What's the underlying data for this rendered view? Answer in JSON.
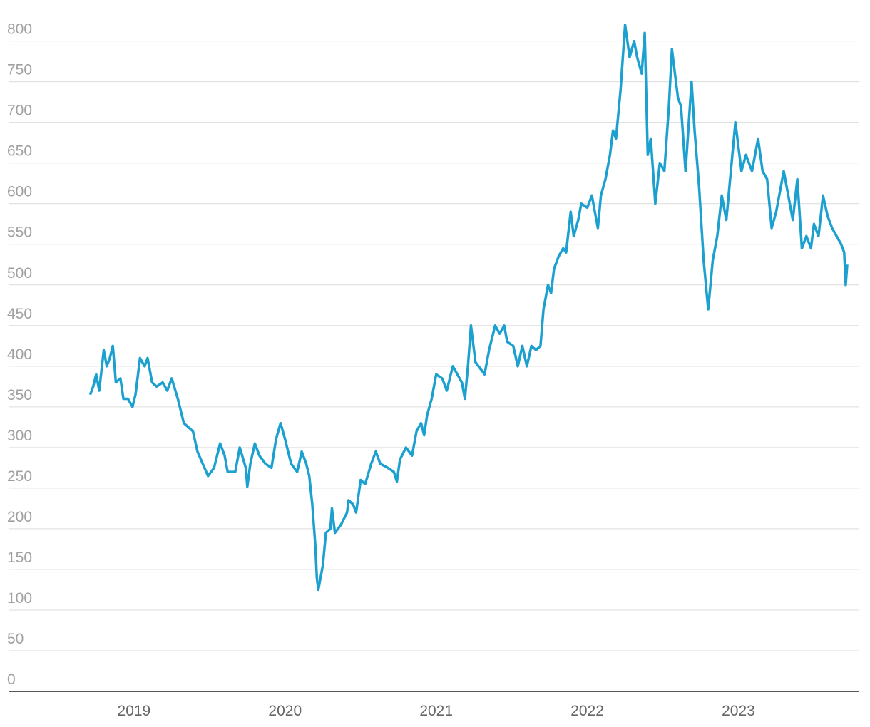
{
  "chart_data": {
    "type": "line",
    "color": "#1ca0cf",
    "grid": true,
    "xlim": [
      2018.17,
      2023.8
    ],
    "xticks": [
      2019,
      2020,
      2021,
      2022,
      2023
    ],
    "ylim": [
      0,
      833
    ],
    "yticks": [
      0,
      50,
      100,
      150,
      200,
      250,
      300,
      350,
      400,
      450,
      500,
      550,
      600,
      650,
      700,
      750,
      800
    ],
    "x": [
      2018.71,
      2018.73,
      2018.75,
      2018.77,
      2018.8,
      2018.82,
      2018.84,
      2018.86,
      2018.88,
      2018.91,
      2018.93,
      2018.96,
      2018.99,
      2019.01,
      2019.04,
      2019.07,
      2019.09,
      2019.12,
      2019.15,
      2019.19,
      2019.22,
      2019.25,
      2019.29,
      2019.33,
      2019.39,
      2019.42,
      2019.49,
      2019.53,
      2019.57,
      2019.6,
      2019.62,
      2019.67,
      2019.7,
      2019.74,
      2019.75,
      2019.77,
      2019.8,
      2019.83,
      2019.87,
      2019.91,
      2019.94,
      2019.97,
      2020.0,
      2020.04,
      2020.08,
      2020.11,
      2020.14,
      2020.16,
      2020.18,
      2020.2,
      2020.21,
      2020.22,
      2020.25,
      2020.27,
      2020.3,
      2020.31,
      2020.33,
      2020.37,
      2020.41,
      2020.42,
      2020.45,
      2020.47,
      2020.5,
      2020.53,
      2020.57,
      2020.6,
      2020.63,
      2020.68,
      2020.72,
      2020.74,
      2020.76,
      2020.8,
      2020.84,
      2020.87,
      2020.9,
      2020.92,
      2020.94,
      2020.97,
      2021.0,
      2021.04,
      2021.07,
      2021.11,
      2021.14,
      2021.17,
      2021.19,
      2021.21,
      2021.23,
      2021.26,
      2021.28,
      2021.32,
      2021.35,
      2021.39,
      2021.42,
      2021.45,
      2021.47,
      2021.51,
      2021.54,
      2021.57,
      2021.6,
      2021.63,
      2021.66,
      2021.69,
      2021.71,
      2021.74,
      2021.76,
      2021.78,
      2021.81,
      2021.84,
      2021.86,
      2021.89,
      2021.91,
      2021.94,
      2021.96,
      2022.0,
      2022.03,
      2022.07,
      2022.09,
      2022.12,
      2022.15,
      2022.17,
      2022.19,
      2022.22,
      2022.25,
      2022.28,
      2022.31,
      2022.33,
      2022.36,
      2022.38,
      2022.4,
      2022.42,
      2022.45,
      2022.48,
      2022.51,
      2022.54,
      2022.56,
      2022.6,
      2022.62,
      2022.65,
      2022.69,
      2022.71,
      2022.74,
      2022.77,
      2022.8,
      2022.83,
      2022.86,
      2022.89,
      2022.92,
      2022.94,
      2022.98,
      2023.02,
      2023.05,
      2023.09,
      2023.13,
      2023.16,
      2023.19,
      2023.22,
      2023.25,
      2023.28,
      2023.3,
      2023.33,
      2023.36,
      2023.39,
      2023.42,
      2023.45,
      2023.48,
      2023.5,
      2023.53,
      2023.56,
      2023.59,
      2023.62,
      2023.65,
      2023.68,
      2023.7,
      2023.71,
      2023.72
    ],
    "values": [
      365,
      375,
      390,
      370,
      420,
      400,
      410,
      425,
      380,
      385,
      360,
      360,
      350,
      365,
      410,
      400,
      410,
      380,
      375,
      380,
      370,
      385,
      360,
      330,
      320,
      295,
      265,
      275,
      305,
      290,
      270,
      270,
      300,
      275,
      252,
      280,
      305,
      290,
      280,
      275,
      310,
      330,
      310,
      280,
      270,
      295,
      280,
      265,
      230,
      180,
      140,
      125,
      155,
      195,
      200,
      225,
      195,
      205,
      220,
      235,
      230,
      220,
      260,
      255,
      280,
      295,
      280,
      275,
      270,
      258,
      285,
      300,
      290,
      320,
      330,
      315,
      340,
      360,
      390,
      385,
      370,
      400,
      390,
      380,
      360,
      400,
      450,
      405,
      400,
      390,
      420,
      450,
      440,
      450,
      430,
      425,
      400,
      425,
      400,
      425,
      420,
      425,
      470,
      500,
      490,
      520,
      535,
      545,
      540,
      590,
      560,
      580,
      600,
      595,
      610,
      570,
      610,
      630,
      660,
      690,
      680,
      740,
      820,
      780,
      800,
      780,
      760,
      810,
      660,
      680,
      600,
      650,
      640,
      720,
      790,
      730,
      720,
      640,
      750,
      690,
      620,
      530,
      470,
      530,
      560,
      610,
      580,
      620,
      700,
      640,
      660,
      640,
      680,
      640,
      630,
      570,
      590,
      620,
      640,
      610,
      580,
      630,
      545,
      560,
      545,
      575,
      560,
      610,
      585,
      570,
      560,
      550,
      540,
      500,
      525
    ]
  }
}
